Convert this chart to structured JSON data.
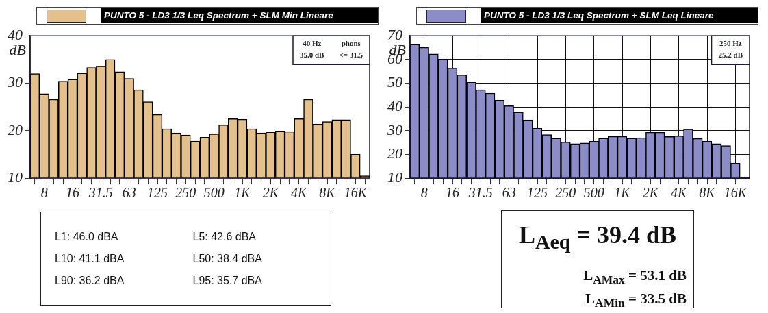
{
  "chart_data": [
    {
      "type": "bar",
      "ylabel": "dB",
      "legend": "top",
      "categories": [
        null,
        "8",
        null,
        null,
        "16",
        null,
        null,
        "31.5",
        null,
        null,
        "63",
        null,
        null,
        "125",
        null,
        null,
        "250",
        null,
        null,
        "500",
        null,
        null,
        "1K",
        null,
        null,
        "2K",
        null,
        null,
        "4K",
        null,
        null,
        "8K",
        null,
        null,
        "16K",
        null
      ],
      "series": [
        {
          "name": "PUNTO 5 - LD3 1/3 Leq Spectrum + SLM Min Lineare",
          "color": "#e3c08c",
          "values": [
            32.0,
            27.8,
            26.6,
            30.4,
            30.8,
            32.1,
            33.3,
            33.6,
            35.0,
            32.4,
            31.0,
            28.6,
            26.1,
            23.4,
            20.4,
            19.5,
            19.1,
            17.8,
            18.6,
            19.3,
            21.2,
            22.5,
            22.4,
            20.4,
            19.5,
            19.7,
            19.9,
            19.8,
            22.5,
            26.6,
            21.4,
            21.9,
            22.3,
            22.3,
            15.0,
            10.5
          ]
        }
      ],
      "ylim": [
        10,
        40
      ],
      "yticks": [
        10,
        20,
        30,
        40
      ],
      "grid": false,
      "annotations": [
        "40 Hz",
        "35.0 dB",
        "phons",
        "<= 31.5"
      ]
    },
    {
      "type": "bar",
      "ylabel": "dB",
      "legend": "top",
      "categories": [
        null,
        "8",
        null,
        null,
        "16",
        null,
        null,
        "31.5",
        null,
        null,
        "63",
        null,
        null,
        "125",
        null,
        null,
        "250",
        null,
        null,
        "500",
        null,
        null,
        "1K",
        null,
        null,
        "2K",
        null,
        null,
        "4K",
        null,
        null,
        "8K",
        null,
        null,
        "16K",
        null
      ],
      "series": [
        {
          "name": "PUNTO 5 - LD3 1/3 Leq Spectrum + SLM Leq Lineare",
          "color": "#8c8cc8",
          "values": [
            66.5,
            65.1,
            62.3,
            60.1,
            56.4,
            53.5,
            50.5,
            47.2,
            45.8,
            42.8,
            40.5,
            37.8,
            34.5,
            31.0,
            28.3,
            26.8,
            25.2,
            24.5,
            24.8,
            25.5,
            26.8,
            27.6,
            27.6,
            26.8,
            27.0,
            29.3,
            29.3,
            27.5,
            27.8,
            30.6,
            26.7,
            25.5,
            24.5,
            23.7,
            16.3,
            null
          ]
        }
      ],
      "ylim": [
        10,
        70
      ],
      "yticks": [
        10,
        20,
        30,
        40,
        50,
        60,
        70
      ],
      "grid": true,
      "annotations": [
        "250 Hz",
        "25.2 dB"
      ]
    },
    {
      "type": "other",
      "annotations": [
        "L1: 46.0 dBA",
        "L5: 42.6 dBA",
        "L10: 41.1 dBA",
        "L50: 38.4 dBA",
        "L90: 36.2 dBA",
        "L95: 35.7 dBA"
      ]
    },
    {
      "type": "other",
      "annotations": [
        "L$_{Aeq}$ = 39.4 dB",
        "L$_{AMax}$ = 53.1 dB",
        "L$_{AMin}$ = 33.5 dB"
      ]
    }
  ]
}
